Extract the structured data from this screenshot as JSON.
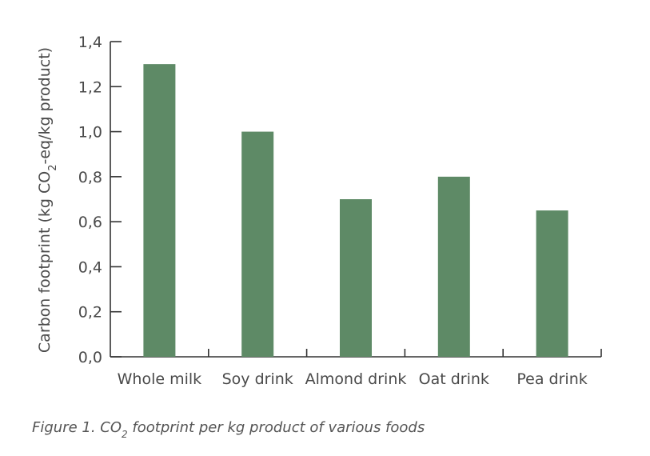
{
  "chart_data": {
    "type": "bar",
    "categories": [
      "Whole milk",
      "Soy drink",
      "Almond drink",
      "Oat drink",
      "Pea drink"
    ],
    "values": [
      1.3,
      1.0,
      0.7,
      0.8,
      0.65
    ],
    "ylim": [
      0,
      1.4
    ],
    "yticks": [
      0.0,
      0.2,
      0.4,
      0.6,
      0.8,
      1.0,
      1.2,
      1.4
    ],
    "ytick_labels": [
      "0,0",
      "0,2",
      "0,4",
      "0,6",
      "0,8",
      "1,0",
      "1,2",
      "1,4"
    ],
    "ylabel_before": "Carbon footprint (kg CO",
    "ylabel_sub": "2",
    "ylabel_after": "-eq/kg product)",
    "xlabel": "",
    "grid": false,
    "bar_color": "#5e8a66",
    "axis_color": "#333333"
  },
  "caption": {
    "before": "Figure 1. CO",
    "sub": "2",
    "after": " footprint per kg product of various foods"
  }
}
